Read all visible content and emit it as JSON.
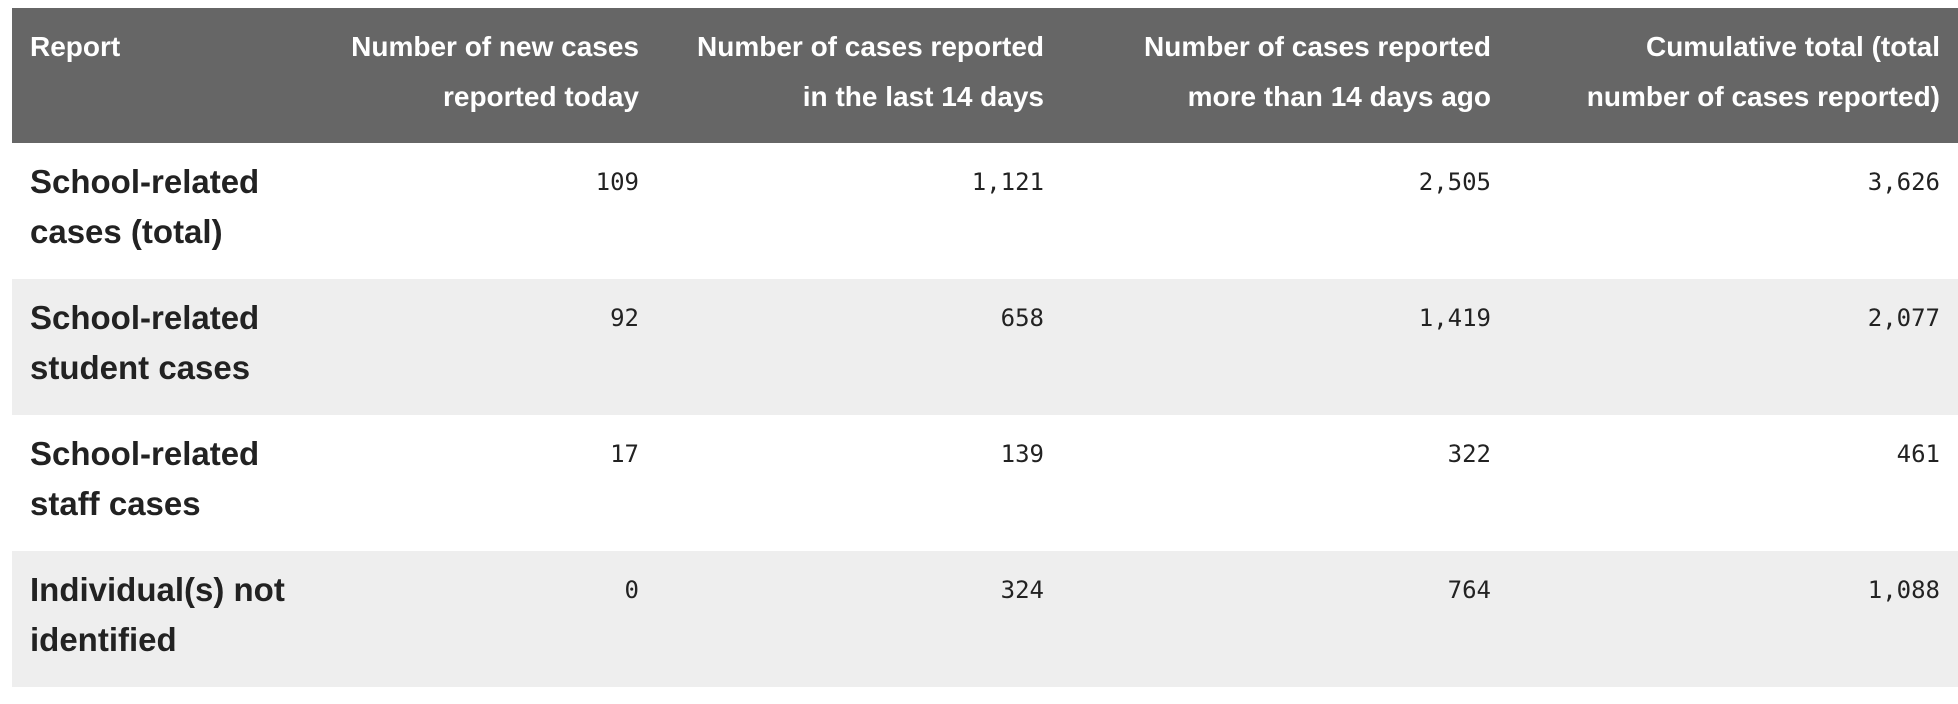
{
  "table": {
    "headers": [
      "Report",
      "Number of new cases reported today",
      "Number of cases reported in the last 14 days",
      "Number of cases reported more than 14 days ago",
      "Cumulative total (total number of cases reported)"
    ],
    "header_lines": [
      [
        "Report",
        ""
      ],
      [
        "Number of new cases",
        "reported today"
      ],
      [
        "Number of cases reported",
        "in the last 14 days"
      ],
      [
        "Number of cases reported",
        "more than 14 days ago"
      ],
      [
        "Cumulative total (total",
        "number of cases reported)"
      ]
    ],
    "rows": [
      {
        "label_lines": [
          "School-related",
          "cases (total)"
        ],
        "values": [
          "109",
          "1,121",
          "2,505",
          "3,626"
        ]
      },
      {
        "label_lines": [
          "School-related",
          "student cases"
        ],
        "values": [
          "92",
          "658",
          "1,419",
          "2,077"
        ]
      },
      {
        "label_lines": [
          "School-related",
          "staff cases"
        ],
        "values": [
          "17",
          "139",
          "322",
          "461"
        ]
      },
      {
        "label_lines": [
          "Individual(s) not",
          "identified"
        ],
        "values": [
          "0",
          "324",
          "764",
          "1,088"
        ]
      }
    ]
  },
  "colors": {
    "header_bg": "#666666",
    "header_text": "#ffffff",
    "row_alt_bg": "#eeeeee",
    "row_bg": "#ffffff"
  }
}
